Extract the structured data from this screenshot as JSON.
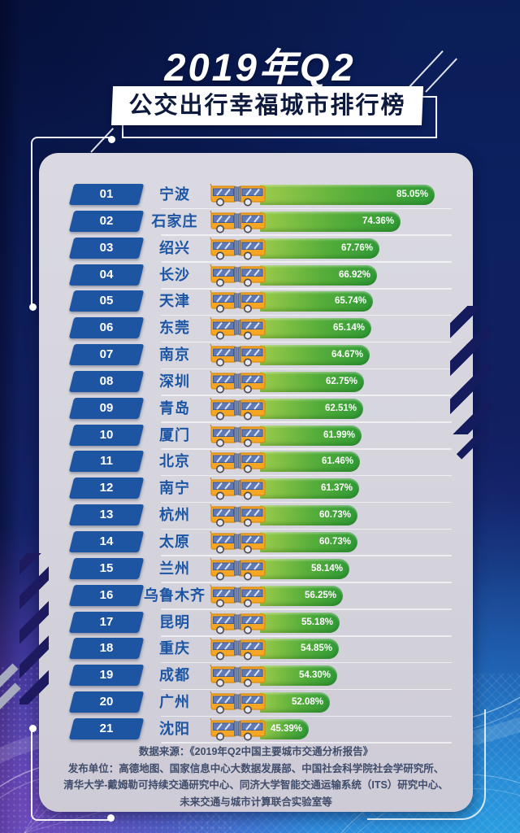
{
  "title": "2019年Q2",
  "subtitle": "公交出行幸福城市排行榜",
  "ranking": {
    "rows": [
      {
        "rank": "01",
        "city": "宁波",
        "value": 85.05,
        "pct": "85.05%"
      },
      {
        "rank": "02",
        "city": "石家庄",
        "value": 74.36,
        "pct": "74.36%"
      },
      {
        "rank": "03",
        "city": "绍兴",
        "value": 67.76,
        "pct": "67.76%"
      },
      {
        "rank": "04",
        "city": "长沙",
        "value": 66.92,
        "pct": "66.92%"
      },
      {
        "rank": "05",
        "city": "天津",
        "value": 65.74,
        "pct": "65.74%"
      },
      {
        "rank": "06",
        "city": "东莞",
        "value": 65.14,
        "pct": "65.14%"
      },
      {
        "rank": "07",
        "city": "南京",
        "value": 64.67,
        "pct": "64.67%"
      },
      {
        "rank": "08",
        "city": "深圳",
        "value": 62.75,
        "pct": "62.75%"
      },
      {
        "rank": "09",
        "city": "青岛",
        "value": 62.51,
        "pct": "62.51%"
      },
      {
        "rank": "10",
        "city": "厦门",
        "value": 61.99,
        "pct": "61.99%"
      },
      {
        "rank": "11",
        "city": "北京",
        "value": 61.46,
        "pct": "61.46%"
      },
      {
        "rank": "12",
        "city": "南宁",
        "value": 61.37,
        "pct": "61.37%"
      },
      {
        "rank": "13",
        "city": "杭州",
        "value": 60.73,
        "pct": "60.73%"
      },
      {
        "rank": "14",
        "city": "太原",
        "value": 60.73,
        "pct": "60.73%"
      },
      {
        "rank": "15",
        "city": "兰州",
        "value": 58.14,
        "pct": "58.14%"
      },
      {
        "rank": "16",
        "city": "乌鲁木齐",
        "value": 56.25,
        "pct": "56.25%"
      },
      {
        "rank": "17",
        "city": "昆明",
        "value": 55.18,
        "pct": "55.18%"
      },
      {
        "rank": "18",
        "city": "重庆",
        "value": 54.85,
        "pct": "54.85%"
      },
      {
        "rank": "19",
        "city": "成都",
        "value": 54.3,
        "pct": "54.30%"
      },
      {
        "rank": "20",
        "city": "广州",
        "value": 52.08,
        "pct": "52.08%"
      },
      {
        "rank": "21",
        "city": "沈阳",
        "value": 45.39,
        "pct": "45.39%"
      }
    ]
  },
  "footer": {
    "line1": "数据来源：《2019年Q2中国主要城市交通分析报告》",
    "line2": "发布单位：高德地图、国家信息中心大数据发展部、中国社会科学院社会学研究所、",
    "line3": "清华大学-戴姆勒可持续交通研究中心、同济大学智能交通运输系统（ITS）研究中心、",
    "line4": "未来交通与城市计算联合实验室等"
  },
  "icons": {
    "row_icon": "bus-icon"
  },
  "colors": {
    "badge_blue": "#1e55a2",
    "city_text": "#1b55a4",
    "bar_green_light": "#9ccb4b",
    "bar_green_dark": "#2f9a36",
    "panel_bg": "#d5d4dc",
    "bg_navy": "#0c2060",
    "footer_text": "#3f4c6b",
    "bus_orange": "#f6a623",
    "bus_window_blue": "#5f7ab8",
    "white": "#ffffff"
  },
  "chart_data": {
    "type": "bar",
    "orientation": "horizontal",
    "title": "2019年Q2 公交出行幸福城市排行榜",
    "unit": "%",
    "categories": [
      "宁波",
      "石家庄",
      "绍兴",
      "长沙",
      "天津",
      "东莞",
      "南京",
      "深圳",
      "青岛",
      "厦门",
      "北京",
      "南宁",
      "杭州",
      "太原",
      "兰州",
      "乌鲁木齐",
      "昆明",
      "重庆",
      "成都",
      "广州",
      "沈阳"
    ],
    "values": [
      85.05,
      74.36,
      67.76,
      66.92,
      65.74,
      65.14,
      64.67,
      62.75,
      62.51,
      61.99,
      61.46,
      61.37,
      60.73,
      60.73,
      58.14,
      56.25,
      55.18,
      54.85,
      54.3,
      52.08,
      45.39
    ],
    "value_labels": [
      "85.05%",
      "74.36%",
      "67.76%",
      "66.92%",
      "65.74%",
      "65.14%",
      "64.67%",
      "62.75%",
      "62.51%",
      "61.99%",
      "61.46%",
      "61.37%",
      "60.73%",
      "60.73%",
      "58.14%",
      "56.25%",
      "55.18%",
      "54.85%",
      "54.30%",
      "52.08%",
      "45.39%"
    ],
    "source": "《2019年Q2中国主要城市交通分析报告》",
    "legend": "none",
    "grid": false
  }
}
